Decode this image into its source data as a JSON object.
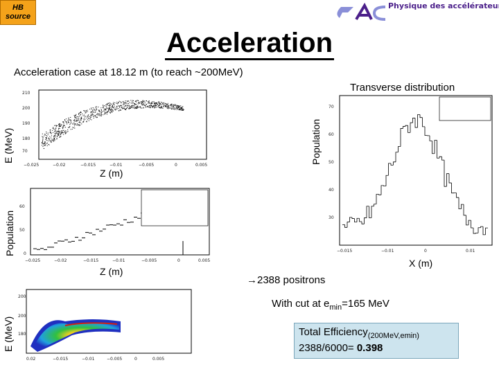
{
  "hb_source": "HB source",
  "header": {
    "logo_text": "Physique des accélérateurs",
    "title": "Acceleration",
    "subtitle": "Acceleration case at 18.12 m (to reach ~200MeV)"
  },
  "plots": {
    "scatter": {
      "ylabel": "E (MeV)",
      "xlabel": "Z (m)"
    },
    "hist_z": {
      "ylabel": "Population",
      "xlabel": "Z (m)"
    },
    "colormap": {
      "ylabel": "E (MeV)"
    },
    "transverse": {
      "title": "Transverse distribution",
      "ylabel": "Population",
      "xlabel": "X (m)"
    }
  },
  "results": {
    "positrons": "2388 positrons",
    "cut_prefix": "With cut at e",
    "cut_sub": "min",
    "cut_suffix": "=165 MeV",
    "eff_title": "Total Efficiency",
    "eff_sub": "(200MeV,emin)",
    "eff_value_text": "2388/6000= ",
    "eff_value": "0.398"
  }
}
